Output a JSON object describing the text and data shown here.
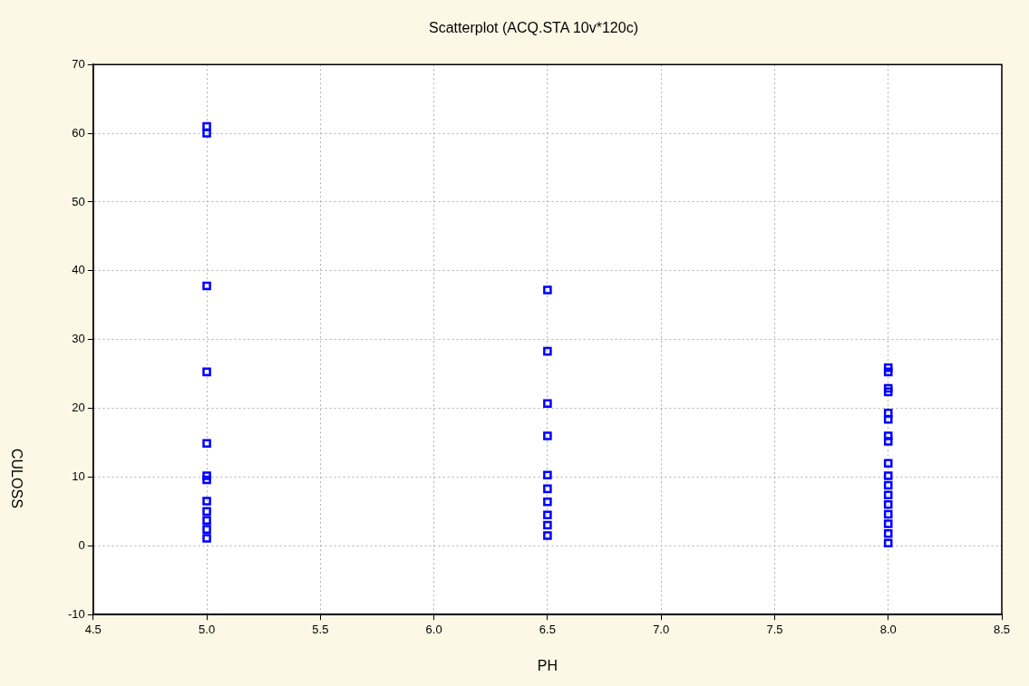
{
  "chart_data": {
    "type": "scatter",
    "title": "Scatterplot (ACQ.STA 10v*120c)",
    "xlabel": "PH",
    "ylabel": "CULOSS",
    "series": [
      {
        "color": "#0000ff",
        "x": [
          5,
          5,
          5,
          5,
          5,
          5,
          5,
          5,
          5,
          5,
          5,
          5,
          6.5,
          6.5,
          6.5,
          6.5,
          6.5,
          6.5,
          6.5,
          6.5,
          6.5,
          6.5,
          8,
          8,
          8,
          8,
          8,
          8,
          8,
          8,
          8,
          8,
          8,
          8,
          8,
          8,
          8,
          8,
          8
        ],
        "values": [
          61,
          60,
          37.8,
          25.3,
          14.9,
          10.2,
          9.6,
          6.5,
          5,
          3.7,
          2.4,
          1.1,
          37.2,
          28.3,
          20.7,
          16,
          10.3,
          8.3,
          6.4,
          4.5,
          3,
          1.5,
          25.9,
          25.3,
          22.9,
          22.4,
          19.3,
          18.4,
          16,
          15.2,
          12,
          10.2,
          8.8,
          7.4,
          6,
          4.6,
          3.2,
          1.8,
          0.4
        ]
      }
    ],
    "xlim": [
      4.5,
      8.5
    ],
    "xticks": [
      {
        "value": 4.5,
        "label": "4.5"
      },
      {
        "value": 5,
        "label": "5.0"
      },
      {
        "value": 5.5,
        "label": "5.5"
      },
      {
        "value": 6,
        "label": "6.0"
      },
      {
        "value": 6.5,
        "label": "6.5"
      },
      {
        "value": 7,
        "label": "7.0"
      },
      {
        "value": 7.5,
        "label": "7.5"
      },
      {
        "value": 8,
        "label": "8.0"
      },
      {
        "value": 8.5,
        "label": "8.5"
      }
    ],
    "ylim": [
      -10,
      70
    ],
    "yticks": [
      -10,
      0,
      10,
      20,
      30,
      40,
      50,
      60,
      70
    ],
    "grid": true,
    "legend": false,
    "marker": "square"
  }
}
